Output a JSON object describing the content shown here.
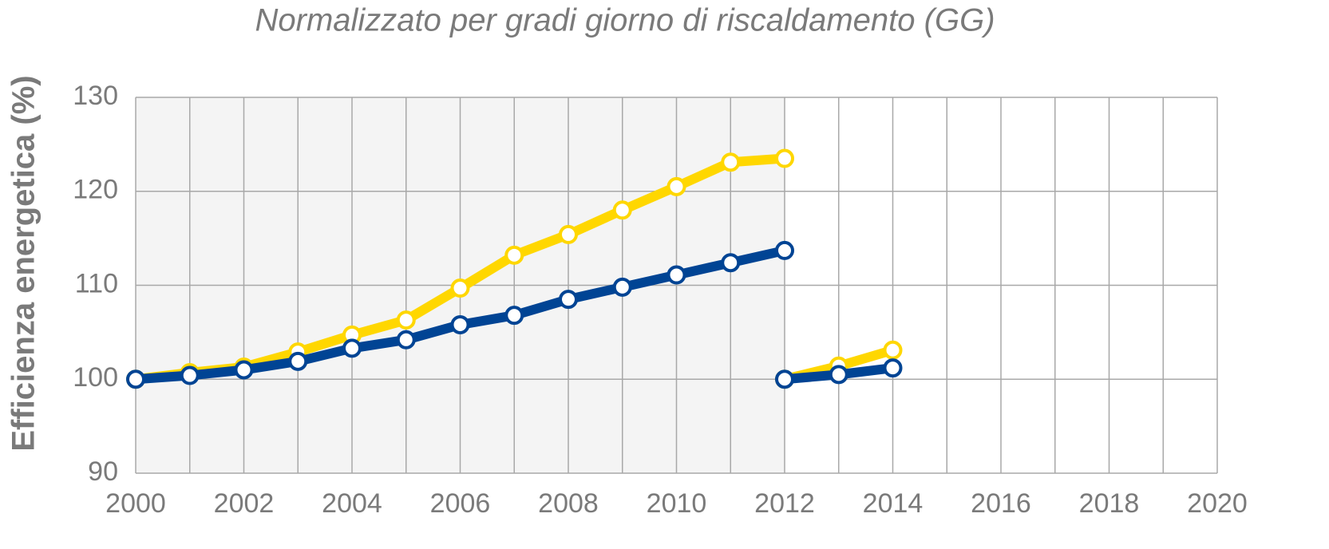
{
  "chart_data": {
    "type": "line",
    "title": "Normalizzato per gradi giorno di riscaldamento (GG)",
    "y_label": "Efficienza energetica  (%)",
    "x": [
      2000,
      2001,
      2002,
      2003,
      2004,
      2005,
      2006,
      2007,
      2008,
      2009,
      2010,
      2011,
      2012,
      2012,
      2012,
      2013,
      2014
    ],
    "series": [
      {
        "color": "#ffd700",
        "values": [
          100,
          100.7,
          101.3,
          102.9,
          104.7,
          106.3,
          109.7,
          113.2,
          115.4,
          118,
          120.5,
          123.1,
          123.5,
          null,
          100,
          101.4,
          103.1
        ]
      },
      {
        "color": "#004494",
        "values": [
          100,
          100.4,
          101,
          101.9,
          103.3,
          104.2,
          105.8,
          106.8,
          108.5,
          109.8,
          111.1,
          112.4,
          113.7,
          null,
          100,
          100.5,
          101.2
        ]
      }
    ],
    "xlim": [
      2000,
      2020
    ],
    "xticks": [
      2000,
      2002,
      2004,
      2006,
      2008,
      2010,
      2012,
      2014,
      2016,
      2018,
      2020
    ],
    "xminorticks": [
      2001,
      2003,
      2005,
      2007,
      2009,
      2011,
      2013,
      2015,
      2017,
      2019
    ],
    "ylim": [
      90,
      130
    ],
    "yticks": [
      90,
      100,
      110,
      120,
      130
    ],
    "grid": true,
    "shaded_xrange": [
      2000,
      2012
    ],
    "shade_color": "#f4f4f4"
  }
}
